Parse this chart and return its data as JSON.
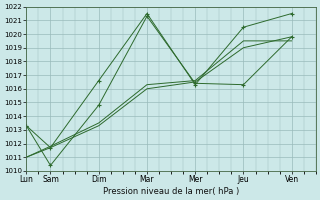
{
  "background_color": "#cce8e8",
  "grid_color": "#99bbbb",
  "line_color": "#2d6a2d",
  "xlabel": "Pression niveau de la mer( hPa )",
  "ylim": [
    1010,
    1022
  ],
  "yticks": [
    1010,
    1011,
    1012,
    1013,
    1014,
    1015,
    1016,
    1017,
    1018,
    1019,
    1020,
    1021,
    1022
  ],
  "xtick_positions": [
    0,
    1,
    3,
    5,
    7,
    9,
    11
  ],
  "xtick_labels": [
    "Lun",
    "Sam",
    "Dim",
    "Mar",
    "Mer",
    "Jeu",
    "Ven"
  ],
  "xlim": [
    0,
    12
  ],
  "series": [
    {
      "x": [
        0,
        1,
        3,
        5,
        7,
        9,
        11
      ],
      "y": [
        1013.3,
        1011.7,
        1016.6,
        1021.5,
        1016.3,
        1020.5,
        1021.5
      ],
      "marker": "+"
    },
    {
      "x": [
        0,
        1,
        3,
        5,
        7,
        9,
        11
      ],
      "y": [
        1013.3,
        1010.4,
        1014.8,
        1021.3,
        1016.4,
        1016.3,
        1019.8
      ],
      "marker": "+"
    },
    {
      "x": [
        0,
        1,
        3,
        5,
        7,
        9,
        11
      ],
      "y": [
        1011.0,
        1011.7,
        1013.3,
        1016.0,
        1016.5,
        1019.0,
        1019.8
      ],
      "marker": null
    },
    {
      "x": [
        0,
        1,
        3,
        5,
        7,
        9,
        11
      ],
      "y": [
        1011.0,
        1011.8,
        1013.5,
        1016.3,
        1016.6,
        1019.5,
        1019.5
      ],
      "marker": null
    }
  ]
}
